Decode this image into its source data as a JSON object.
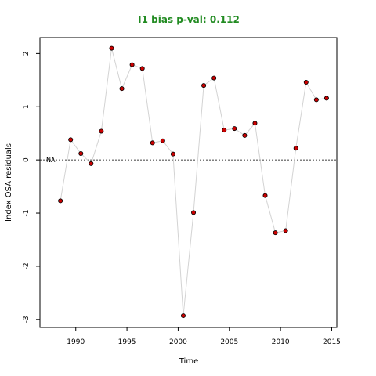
{
  "chart_data": {
    "type": "line",
    "title": "I1 bias p-val: 0.112",
    "xlabel": "Time",
    "ylabel": "Index OSA residuals",
    "xlim": [
      1986.5,
      2015.5
    ],
    "ylim": [
      -3.15,
      2.3
    ],
    "x_ticks": [
      1990,
      1995,
      2000,
      2005,
      2010,
      2015
    ],
    "y_ticks": [
      -3,
      -2,
      -1,
      0,
      1,
      2
    ],
    "reference_line": 0,
    "annotation": "NA",
    "grid": false,
    "colors": {
      "title": "#228B22",
      "points": "#CC0000",
      "line": "#D3D3D3",
      "axis": "#000000"
    },
    "x": [
      1988.5,
      1989.5,
      1990.5,
      1991.5,
      1992.5,
      1993.5,
      1994.5,
      1995.5,
      1996.5,
      1997.5,
      1998.5,
      1999.5,
      2000.5,
      2001.5,
      2002.5,
      2003.5,
      2004.5,
      2005.5,
      2006.5,
      2007.5,
      2008.5,
      2009.5,
      2010.5,
      2011.5,
      2012.5,
      2013.5,
      2014.5
    ],
    "y": [
      -0.77,
      0.38,
      0.12,
      -0.07,
      0.54,
      2.1,
      1.34,
      1.79,
      1.72,
      0.32,
      0.36,
      0.11,
      -2.93,
      -0.99,
      1.4,
      1.54,
      0.56,
      0.59,
      0.46,
      0.69,
      -0.67,
      -1.37,
      -1.33,
      0.22,
      1.46,
      1.13,
      1.16
    ]
  }
}
